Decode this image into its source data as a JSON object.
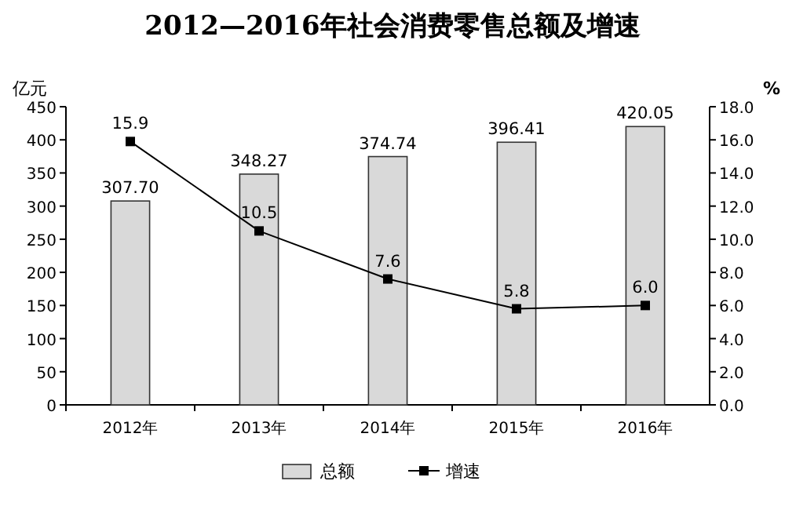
{
  "chart_data": {
    "type": "bar",
    "title": "2012—2016年社会消费零售总额及增速",
    "ylabel": "亿元",
    "y2label": "%",
    "categories": [
      "2012年",
      "2013年",
      "2014年",
      "2015年",
      "2016年"
    ],
    "series": [
      {
        "name": "总额",
        "color": "#d9d9d9",
        "values": [
          307.7,
          348.27,
          374.74,
          396.41,
          420.05
        ],
        "value_labels": [
          "307.70",
          "348.27",
          "374.74",
          "396.41",
          "420.05"
        ]
      },
      {
        "name": "增速",
        "type": "line",
        "axis": "y2",
        "color": "#000000",
        "marker": "square",
        "values": [
          15.9,
          10.5,
          7.6,
          5.8,
          6.0
        ],
        "value_labels": [
          "15.9",
          "10.5",
          "7.6",
          "5.8",
          "6.0"
        ]
      }
    ],
    "ylim": [
      0,
      450
    ],
    "yticks": [
      0,
      50,
      100,
      150,
      200,
      250,
      300,
      350,
      400,
      450
    ],
    "y2lim": [
      0,
      18
    ],
    "y2ticks": [
      {
        "value": 0,
        "label": "0.0"
      },
      {
        "value": 2,
        "label": "2.0"
      },
      {
        "value": 4,
        "label": "4.0"
      },
      {
        "value": 6,
        "label": "6.0"
      },
      {
        "value": 8,
        "label": "8.0"
      },
      {
        "value": 10,
        "label": "10.0"
      },
      {
        "value": 12,
        "label": "12.0"
      },
      {
        "value": 14,
        "label": "14.0"
      },
      {
        "value": 16,
        "label": "16.0"
      },
      {
        "value": 18,
        "label": "18.0"
      }
    ],
    "legend": "bottom"
  }
}
